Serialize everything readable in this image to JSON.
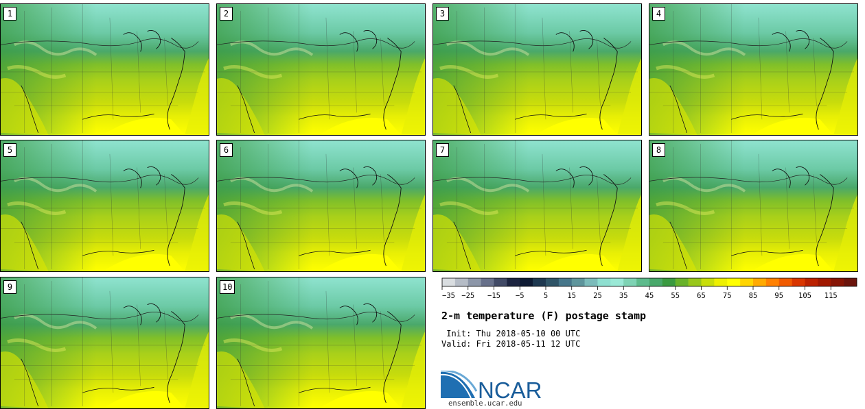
{
  "members": [
    {
      "label": "1"
    },
    {
      "label": "2"
    },
    {
      "label": "3"
    },
    {
      "label": "4"
    },
    {
      "label": "5"
    },
    {
      "label": "6"
    },
    {
      "label": "7"
    },
    {
      "label": "8"
    },
    {
      "label": "9"
    },
    {
      "label": "10"
    }
  ],
  "colorbar": {
    "ticks": [
      "−35",
      "−25",
      "−15",
      "−5",
      "5",
      "15",
      "25",
      "35",
      "45",
      "55",
      "65",
      "75",
      "85",
      "95",
      "105",
      "115"
    ],
    "colors": [
      "#d9dde0",
      "#b5bcc6",
      "#8c96a8",
      "#67708a",
      "#414a66",
      "#1c2440",
      "#0e1a33",
      "#1e3850",
      "#2f5467",
      "#46768a",
      "#5e959c",
      "#7cbcbb",
      "#8edfd0",
      "#9ae9d6",
      "#7ed3b4",
      "#5dbb8c",
      "#48a86a",
      "#3a9a40",
      "#68b22a",
      "#98c71a",
      "#c8de0a",
      "#eef000",
      "#ffff00",
      "#ffd500",
      "#ffaa00",
      "#ff8000",
      "#f05a00",
      "#d93600",
      "#bb2100",
      "#a01800",
      "#861505",
      "#6b140c"
    ]
  },
  "title": "2-m temperature (F) postage stamp",
  "init_line": " Init: Thu 2018-05-10 00 UTC",
  "valid_line": "Valid: Fri 2018-05-11 12 UTC",
  "logo": {
    "text": "NCAR",
    "url": "ensemble.ucar.edu"
  }
}
